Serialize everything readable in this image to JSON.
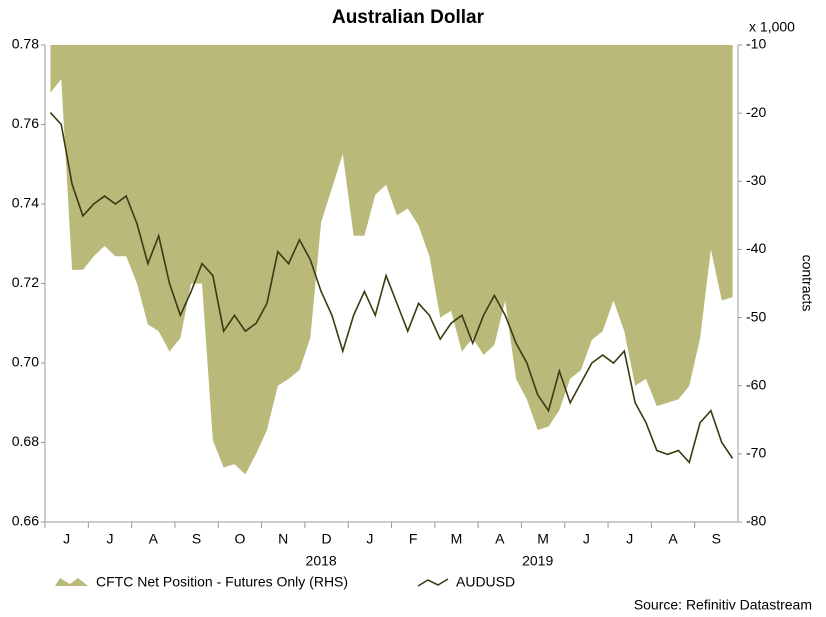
{
  "chart_data": {
    "type": "area_line",
    "title": "Australian Dollar",
    "y2_unit": "x 1,000",
    "y2_label": "contracts",
    "source": "Source: Refinitiv Datastream",
    "year_labels": [
      {
        "label": "2018",
        "category": 25
      },
      {
        "label": "2019",
        "category": 45
      }
    ],
    "categories": [
      null,
      "J",
      null,
      null,
      null,
      "J",
      null,
      null,
      null,
      "A",
      null,
      null,
      null,
      "S",
      null,
      null,
      null,
      "O",
      null,
      null,
      null,
      "N",
      null,
      null,
      null,
      "D",
      null,
      null,
      null,
      "J",
      null,
      null,
      null,
      "F",
      null,
      null,
      null,
      "M",
      null,
      null,
      null,
      "A",
      null,
      null,
      null,
      "M",
      null,
      null,
      null,
      "J",
      null,
      null,
      null,
      "J",
      null,
      null,
      null,
      "A",
      null,
      null,
      null,
      "S",
      null,
      null
    ],
    "ylim": [
      0.66,
      0.78
    ],
    "yticks": [
      0.66,
      0.68,
      {
        "value": 0.7,
        "label": "0.70"
      },
      0.72,
      0.74,
      0.76,
      0.78
    ],
    "y2lim": [
      -80,
      -10
    ],
    "y2ticks": [
      -80,
      -70,
      -60,
      -50,
      -40,
      -30,
      -20,
      -10
    ],
    "series": [
      {
        "name": "CFTC Net Position - Futures Only (RHS)",
        "color": "#b9b97a",
        "axis": "y2",
        "values": [
          -17,
          -15,
          -43,
          -43,
          -41,
          -39.5,
          -41,
          -41,
          -45,
          -51,
          -52,
          -55,
          -53,
          -45,
          -45,
          -68,
          -72,
          -71.5,
          -73,
          -70,
          -66.5,
          -60,
          -59,
          -57.7,
          -53,
          -36,
          -31,
          -26,
          -38,
          -38,
          -32,
          -30.5,
          -35,
          -34,
          -36.5,
          -41,
          -50,
          -49,
          -55,
          -53,
          -55.5,
          -54,
          -47.5,
          -59,
          -62,
          -66.5,
          -66,
          -63.6,
          -59,
          -57.7,
          -53.3,
          -52,
          -47.5,
          -52,
          -60,
          -59,
          -63,
          -62.5,
          -62,
          -60,
          -53,
          -40,
          -47.5,
          -47
        ]
      },
      {
        "name": "AUDUSD",
        "color": "#3b3b12",
        "values": [
          0.763,
          0.76,
          0.745,
          0.737,
          0.74,
          0.742,
          0.74,
          0.742,
          0.735,
          0.725,
          0.732,
          0.72,
          0.712,
          0.718,
          0.725,
          0.722,
          0.708,
          0.712,
          0.708,
          0.71,
          0.715,
          0.728,
          0.725,
          0.731,
          0.726,
          0.718,
          0.712,
          0.703,
          0.712,
          0.718,
          0.712,
          0.722,
          0.715,
          0.708,
          0.715,
          0.712,
          0.706,
          0.71,
          0.712,
          0.705,
          0.712,
          0.717,
          0.712,
          0.705,
          0.7,
          0.692,
          0.688,
          0.698,
          0.69,
          0.695,
          0.7,
          0.702,
          0.7,
          0.703,
          0.69,
          0.685,
          0.678,
          0.677,
          0.678,
          0.675,
          0.685,
          0.688,
          0.68,
          0.676
        ]
      }
    ]
  }
}
